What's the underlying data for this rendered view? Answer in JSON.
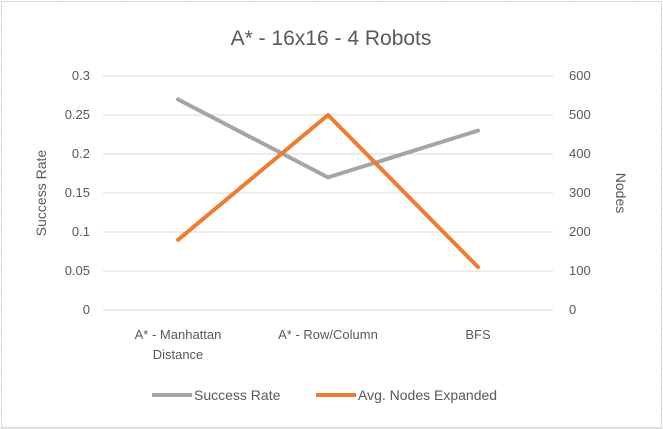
{
  "chart_data": {
    "type": "line",
    "title": "A* - 16x16 - 4 Robots",
    "categories": [
      [
        "A* - Manhattan",
        "Distance"
      ],
      [
        "A* - Row/Column"
      ],
      [
        "BFS"
      ]
    ],
    "ylabel": "Success Rate",
    "y2label": "Nodes",
    "ylim": [
      0,
      0.3
    ],
    "y2lim": [
      0,
      600
    ],
    "yticks": [
      "0",
      "0.05",
      "0.1",
      "0.15",
      "0.2",
      "0.25",
      "0.3"
    ],
    "y2ticks": [
      "0",
      "100",
      "200",
      "300",
      "400",
      "500",
      "600"
    ],
    "grid": true,
    "legend_position": "bottom",
    "series": [
      {
        "name": "Success Rate",
        "axis": "left",
        "color": "#a5a5a5",
        "values": [
          0.27,
          0.17,
          0.23
        ]
      },
      {
        "name": "Avg. Nodes Expanded",
        "axis": "right",
        "color": "#ed7d31",
        "values": [
          180,
          500,
          110
        ]
      }
    ]
  }
}
